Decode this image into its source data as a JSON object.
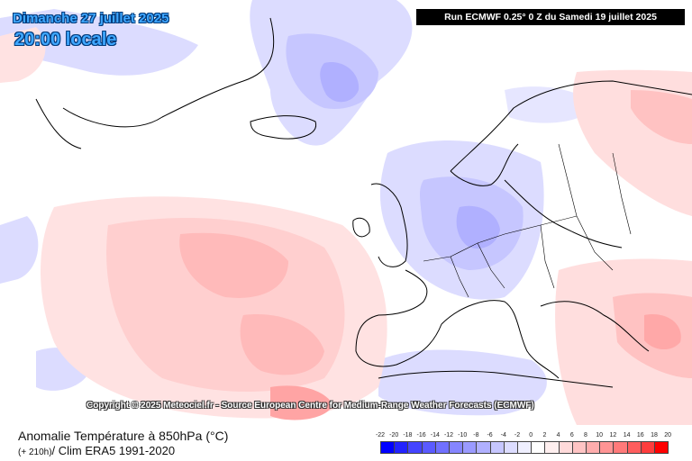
{
  "header": {
    "date": "Dimanche 27 juillet 2025",
    "time": "20:00 locale",
    "run": "Run ECMWF 0.25° 0 Z du Samedi 19 juillet 2025"
  },
  "copyright": "Copyright © 2025 Meteociel.fr - Source European Centre for Medium-Range Weather Forecasts (ECMWF)",
  "footer": {
    "title": "Anomalie Température à 850hPa (°C)",
    "lead": "(+ 210h)",
    "clim": "/ Clim ERA5 1991-2020"
  },
  "legend": {
    "labels": [
      "-22",
      "-20",
      "-18",
      "-16",
      "-14",
      "-12",
      "-10",
      "-8",
      "-6",
      "-4",
      "-2",
      "0",
      "2",
      "4",
      "6",
      "8",
      "10",
      "12",
      "14",
      "16",
      "18",
      "20"
    ],
    "colors": [
      "#0000ff",
      "#2222ff",
      "#4444ff",
      "#5a5aff",
      "#7070ff",
      "#8585ff",
      "#9a9aff",
      "#b0b0ff",
      "#c6c6ff",
      "#dcdcff",
      "#efefff",
      "#ffffff",
      "#ffefef",
      "#ffdada",
      "#ffc4c4",
      "#ffadad",
      "#ff9494",
      "#ff7a7a",
      "#ff5e5e",
      "#ff3d3d",
      "#ff0000"
    ]
  },
  "map": {
    "background": "#ffffff",
    "cold_color": "#c8ccff",
    "warm_color": "#ffc4c4"
  }
}
